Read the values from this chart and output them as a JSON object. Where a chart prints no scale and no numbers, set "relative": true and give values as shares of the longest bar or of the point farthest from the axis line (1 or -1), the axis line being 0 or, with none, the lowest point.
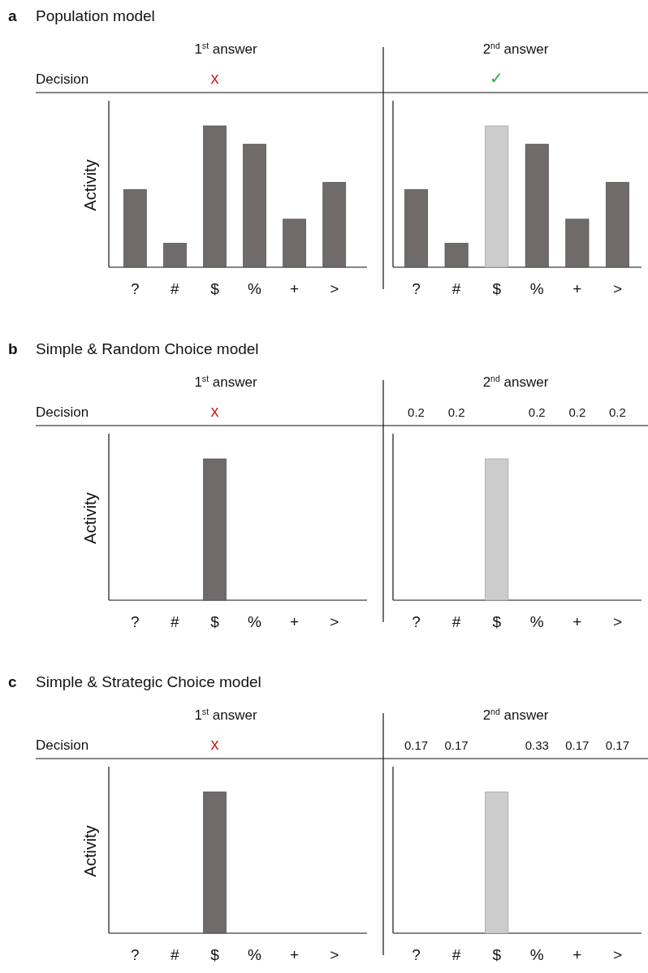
{
  "chart_data": [
    {
      "type": "bar",
      "relative": true,
      "title": "a Population model",
      "subtitle": "1$^{st}$ answer",
      "ylabel": "Activity",
      "categories": [
        "?",
        "#",
        "$",
        "%",
        "+",
        ">"
      ],
      "values": [
        0.55,
        0.17,
        1,
        0.87,
        0.34,
        0.6
      ],
      "colors": [
        "#6f6b6b",
        "#6f6b6b",
        "#6f6b6b",
        "#6f6b6b",
        "#6f6b6b",
        "#6f6b6b"
      ],
      "annotations": [
        "Decision",
        "x"
      ]
    },
    {
      "type": "bar",
      "relative": true,
      "subtitle": "2$^{nd}$ answer",
      "categories": [
        "?",
        "#",
        "$",
        "%",
        "+",
        ">"
      ],
      "values": [
        0.55,
        0.17,
        1,
        0.87,
        0.34,
        0.6
      ],
      "colors": [
        "#6f6b6b",
        "#6f6b6b",
        "#cccccc",
        "#6f6b6b",
        "#6f6b6b",
        "#6f6b6b"
      ],
      "annotations": [
        "✓"
      ]
    },
    {
      "type": "bar",
      "relative": true,
      "title": "b Simple & Random Choice model",
      "subtitle": "1$^{st}$ answer",
      "ylabel": "Activity",
      "categories": [
        "?",
        "#",
        "$",
        "%",
        "+",
        ">"
      ],
      "values": [
        0,
        0,
        1,
        0,
        0,
        0
      ],
      "colors": [
        "#6f6b6b",
        "#6f6b6b",
        "#6f6b6b",
        "#6f6b6b",
        "#6f6b6b",
        "#6f6b6b"
      ],
      "annotations": [
        "Decision",
        "x"
      ]
    },
    {
      "type": "bar",
      "relative": true,
      "subtitle": "2$^{nd}$ answer",
      "categories": [
        "?",
        "#",
        "$",
        "%",
        "+",
        ">"
      ],
      "values": [
        0,
        0,
        1,
        0,
        0,
        0
      ],
      "colors": [
        "#6f6b6b",
        "#6f6b6b",
        "#cccccc",
        "#6f6b6b",
        "#6f6b6b",
        "#6f6b6b"
      ],
      "annotations": [
        "0.2",
        "0.2",
        "0.2",
        "0.2",
        "0.2"
      ]
    },
    {
      "type": "bar",
      "relative": true,
      "title": "c Simple & Strategic Choice model",
      "subtitle": "1$^{st}$ answer",
      "ylabel": "Activity",
      "categories": [
        "?",
        "#",
        "$",
        "%",
        "+",
        ">"
      ],
      "values": [
        0,
        0,
        1,
        0,
        0,
        0
      ],
      "colors": [
        "#6f6b6b",
        "#6f6b6b",
        "#6f6b6b",
        "#6f6b6b",
        "#6f6b6b",
        "#6f6b6b"
      ],
      "annotations": [
        "Decision",
        "x"
      ]
    },
    {
      "type": "bar",
      "relative": true,
      "subtitle": "2$^{nd}$ answer",
      "categories": [
        "?",
        "#",
        "$",
        "%",
        "+",
        ">"
      ],
      "values": [
        0,
        0,
        1,
        0,
        0,
        0
      ],
      "colors": [
        "#6f6b6b",
        "#6f6b6b",
        "#cccccc",
        "#6f6b6b",
        "#6f6b6b",
        "#6f6b6b"
      ],
      "annotations": [
        "0.17",
        "0.17",
        "0.33",
        "0.17",
        "0.17"
      ]
    }
  ]
}
